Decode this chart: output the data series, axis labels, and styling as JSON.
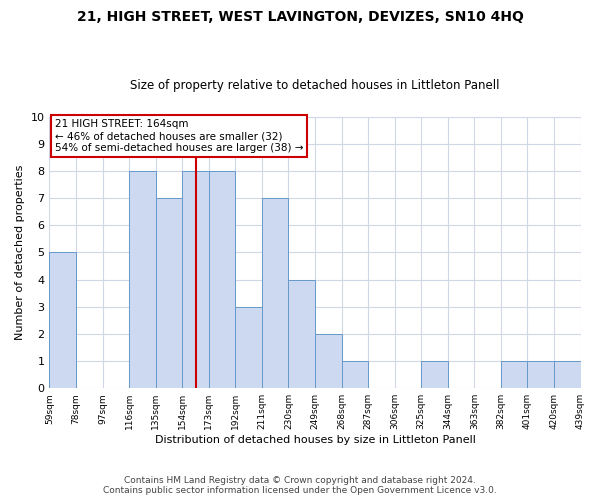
{
  "title": "21, HIGH STREET, WEST LAVINGTON, DEVIZES, SN10 4HQ",
  "subtitle": "Size of property relative to detached houses in Littleton Panell",
  "xlabel": "Distribution of detached houses by size in Littleton Panell",
  "ylabel": "Number of detached properties",
  "bin_edges": [
    59,
    78,
    97,
    116,
    135,
    154,
    173,
    192,
    211,
    230,
    249,
    268,
    287,
    306,
    325,
    344,
    363,
    382,
    401,
    420,
    439
  ],
  "counts": [
    5,
    0,
    0,
    8,
    7,
    8,
    8,
    3,
    7,
    4,
    2,
    1,
    0,
    0,
    1,
    0,
    0,
    1,
    1,
    1
  ],
  "bar_color": "#ccd9f0",
  "bar_edge_color": "#6699cc",
  "reference_line_x": 164,
  "annotation_line1": "21 HIGH STREET: 164sqm",
  "annotation_line2": "← 46% of detached houses are smaller (32)",
  "annotation_line3": "54% of semi-detached houses are larger (38) →",
  "annotation_box_color": "#ffffff",
  "annotation_box_edge_color": "#cc0000",
  "ylim": [
    0,
    10
  ],
  "yticks": [
    0,
    1,
    2,
    3,
    4,
    5,
    6,
    7,
    8,
    9,
    10
  ],
  "footer_line1": "Contains HM Land Registry data © Crown copyright and database right 2024.",
  "footer_line2": "Contains public sector information licensed under the Open Government Licence v3.0.",
  "background_color": "#ffffff",
  "grid_color": "#d0d8e8",
  "fig_width": 6.0,
  "fig_height": 5.0,
  "dpi": 100
}
